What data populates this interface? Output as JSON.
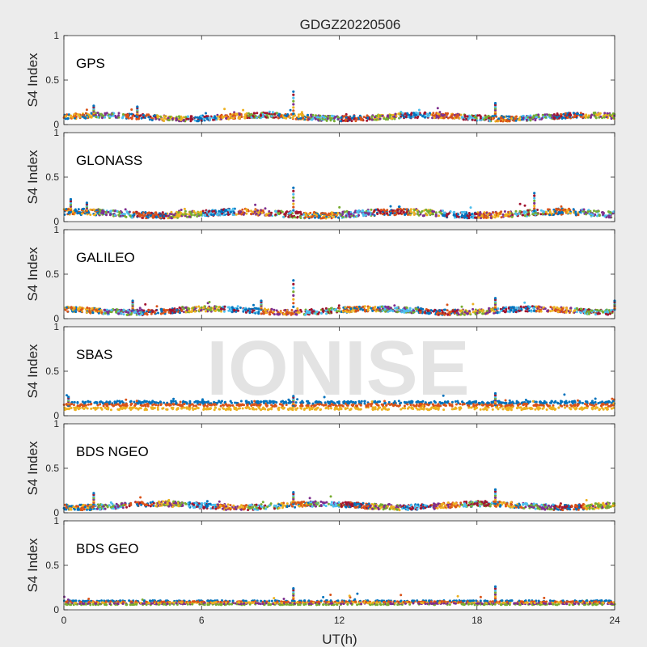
{
  "figure": {
    "title": "GDGZ20220506",
    "xlabel": "UT(h)",
    "watermark": "IONISE",
    "background": "#ececec",
    "watermark_color": "#d9d9d9"
  },
  "chart_data": [
    {
      "type": "scatter",
      "panel_label": "GPS",
      "ylabel": "S4 Index",
      "xlim": [
        0,
        24
      ],
      "ylim": [
        0,
        1
      ],
      "yticks": [
        "0",
        "0.5",
        "1"
      ],
      "xticks": [],
      "grid": false,
      "baseline": 0.085,
      "spread": 0.03,
      "spikes": [
        {
          "x": 10.0,
          "y": 0.37
        },
        {
          "x": 18.8,
          "y": 0.24
        },
        {
          "x": 3.2,
          "y": 0.2
        },
        {
          "x": 1.3,
          "y": 0.21
        }
      ],
      "segments": 18
    },
    {
      "type": "scatter",
      "panel_label": "GLONASS",
      "ylabel": "S4 Index",
      "xlim": [
        0,
        24
      ],
      "ylim": [
        0,
        1
      ],
      "yticks": [
        "0",
        "0.5",
        "1"
      ],
      "xticks": [],
      "grid": false,
      "baseline": 0.09,
      "spread": 0.035,
      "spikes": [
        {
          "x": 10.0,
          "y": 0.38
        },
        {
          "x": 20.5,
          "y": 0.32
        },
        {
          "x": 0.3,
          "y": 0.25
        },
        {
          "x": 1.0,
          "y": 0.21
        }
      ],
      "segments": 16
    },
    {
      "type": "scatter",
      "panel_label": "GALILEO",
      "ylabel": "S4 Index",
      "xlim": [
        0,
        24
      ],
      "ylim": [
        0,
        1
      ],
      "yticks": [
        "0",
        "0.5",
        "1"
      ],
      "xticks": [],
      "grid": false,
      "baseline": 0.09,
      "spread": 0.03,
      "spikes": [
        {
          "x": 10.0,
          "y": 0.43
        },
        {
          "x": 18.8,
          "y": 0.23
        },
        {
          "x": 3.0,
          "y": 0.2
        },
        {
          "x": 8.6,
          "y": 0.2
        },
        {
          "x": 24.0,
          "y": 0.2
        }
      ],
      "segments": 14
    },
    {
      "type": "scatter",
      "panel_label": "SBAS",
      "ylabel": "S4 Index",
      "xlim": [
        0,
        24
      ],
      "ylim": [
        0,
        1
      ],
      "yticks": [
        "0",
        "0.5",
        "1"
      ],
      "xticks": [],
      "grid": false,
      "baseline": 0.1,
      "spread": 0.05,
      "bands": [
        0.15,
        0.12,
        0.08
      ],
      "spikes": [
        {
          "x": 10.0,
          "y": 0.22
        },
        {
          "x": 18.8,
          "y": 0.25
        },
        {
          "x": 0.2,
          "y": 0.21
        }
      ],
      "segments": 3
    },
    {
      "type": "scatter",
      "panel_label": "BDS NGEO",
      "ylabel": "S4 Index",
      "xlim": [
        0,
        24
      ],
      "ylim": [
        0,
        1
      ],
      "yticks": [
        "0",
        "0.5",
        "1"
      ],
      "xticks": [],
      "grid": false,
      "baseline": 0.08,
      "spread": 0.03,
      "spikes": [
        {
          "x": 10.0,
          "y": 0.23
        },
        {
          "x": 18.8,
          "y": 0.26
        },
        {
          "x": 1.3,
          "y": 0.22
        }
      ],
      "segments": 18
    },
    {
      "type": "scatter",
      "panel_label": "BDS GEO",
      "ylabel": "S4 Index",
      "xlim": [
        0,
        24
      ],
      "ylim": [
        0,
        1
      ],
      "yticks": [
        "0",
        "0.5",
        "1"
      ],
      "xticks": [
        "0",
        "6",
        "12",
        "18",
        "24"
      ],
      "grid": false,
      "baseline": 0.085,
      "spread": 0.015,
      "bands": [
        0.1,
        0.09,
        0.08,
        0.07,
        0.06
      ],
      "spikes": [
        {
          "x": 10.0,
          "y": 0.24
        },
        {
          "x": 18.8,
          "y": 0.26
        }
      ],
      "segments": 5
    }
  ],
  "series_colors": [
    "#0072bd",
    "#d95319",
    "#edb120",
    "#7e2f8e",
    "#77ac30",
    "#4dbeee",
    "#a2142f"
  ]
}
